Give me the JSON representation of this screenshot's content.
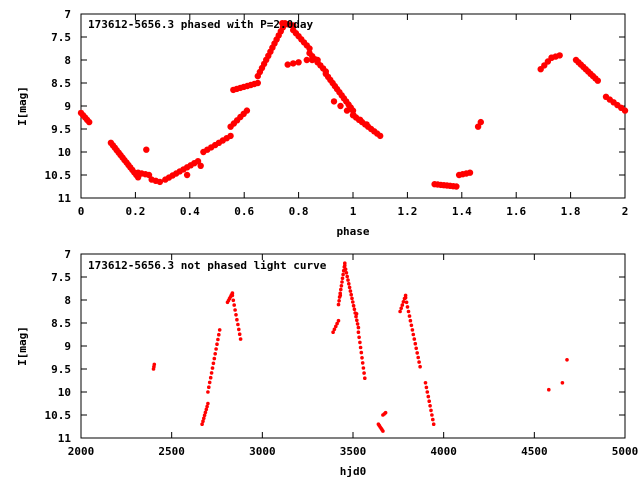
{
  "colors": {
    "marker": "#ff0000",
    "axis": "#000000",
    "background": "#ffffff"
  },
  "chart_data": [
    {
      "type": "scatter",
      "title": "173612-5656.3 phased with P=2.0day",
      "xlabel": "phase",
      "ylabel": "I[mag]",
      "xlim": [
        0,
        2
      ],
      "ylim": [
        7,
        11
      ],
      "y_inverted": true,
      "grid": false,
      "x_ticks": [
        0,
        0.2,
        0.4,
        0.6,
        0.8,
        1,
        1.2,
        1.4,
        1.6,
        1.8,
        2
      ],
      "x_tick_labels": [
        "0",
        "0.2",
        "0.4",
        "0.6",
        "0.8",
        "1",
        "1.2",
        "1.4",
        "1.6",
        "1.8",
        "2"
      ],
      "y_ticks": [
        7,
        7.5,
        8,
        8.5,
        9,
        9.5,
        10,
        10.5,
        11
      ],
      "y_tick_labels": [
        "7",
        "7.5",
        "8",
        "8.5",
        "9",
        "9.5",
        "10",
        "10.5",
        "11"
      ],
      "marker_size": "large",
      "series": [
        {
          "segments": [
            {
              "x0": 0.0,
              "x1": 0.03,
              "y0": 9.15,
              "y1": 9.35,
              "n": 5
            },
            {
              "x0": 0.11,
              "x1": 0.21,
              "y0": 9.8,
              "y1": 10.55,
              "n": 15
            },
            {
              "x0": 0.21,
              "x1": 0.25,
              "y0": 10.45,
              "y1": 10.5,
              "n": 4
            },
            {
              "x0": 0.26,
              "x1": 0.29,
              "y0": 10.6,
              "y1": 10.65,
              "n": 3
            },
            {
              "x0": 0.31,
              "x1": 0.43,
              "y0": 10.6,
              "y1": 10.2,
              "n": 10
            },
            {
              "x0": 0.45,
              "x1": 0.55,
              "y0": 10.0,
              "y1": 9.65,
              "n": 8
            },
            {
              "x0": 0.55,
              "x1": 0.61,
              "y0": 9.45,
              "y1": 9.1,
              "n": 6
            },
            {
              "x0": 0.56,
              "x1": 0.65,
              "y0": 8.65,
              "y1": 8.5,
              "n": 8
            },
            {
              "x0": 0.65,
              "x1": 0.75,
              "y0": 8.35,
              "y1": 7.2,
              "n": 14
            },
            {
              "x0": 0.74,
              "x1": 0.78,
              "y0": 7.2,
              "y1": 7.25,
              "n": 5
            },
            {
              "x0": 0.78,
              "x1": 0.84,
              "y0": 7.35,
              "y1": 7.75,
              "n": 7
            },
            {
              "x0": 0.84,
              "x1": 0.9,
              "y0": 7.85,
              "y1": 8.25,
              "n": 7
            },
            {
              "x0": 0.9,
              "x1": 1.0,
              "y0": 8.3,
              "y1": 9.1,
              "n": 13
            },
            {
              "x0": 1.0,
              "x1": 1.1,
              "y0": 9.2,
              "y1": 9.65,
              "n": 10
            },
            {
              "x0": 0.76,
              "x1": 0.8,
              "y0": 8.1,
              "y1": 8.05,
              "n": 3
            },
            {
              "x0": 0.83,
              "x1": 0.87,
              "y0": 8.0,
              "y1": 8.0,
              "n": 3
            },
            {
              "x0": 0.93,
              "x1": 1.05,
              "y0": 8.9,
              "y1": 9.4,
              "n": 6
            },
            {
              "x0": 1.3,
              "x1": 1.38,
              "y0": 10.7,
              "y1": 10.75,
              "n": 8
            },
            {
              "x0": 1.39,
              "x1": 1.43,
              "y0": 10.5,
              "y1": 10.45,
              "n": 4
            },
            {
              "x0": 1.46,
              "x1": 1.47,
              "y0": 9.45,
              "y1": 9.35,
              "n": 2
            },
            {
              "x0": 1.69,
              "x1": 1.73,
              "y0": 8.2,
              "y1": 7.95,
              "n": 4
            },
            {
              "x0": 1.73,
              "x1": 1.76,
              "y0": 7.95,
              "y1": 7.9,
              "n": 3
            },
            {
              "x0": 1.82,
              "x1": 1.9,
              "y0": 8.0,
              "y1": 8.45,
              "n": 10
            },
            {
              "x0": 1.93,
              "x1": 2.0,
              "y0": 8.8,
              "y1": 9.1,
              "n": 6
            }
          ],
          "points": [
            [
              0.24,
              9.95
            ],
            [
              0.44,
              10.3
            ],
            [
              0.39,
              10.5
            ]
          ]
        }
      ]
    },
    {
      "type": "scatter",
      "title": "173612-5656.3 not phased light curve",
      "xlabel": "hjd0",
      "ylabel": "I[mag]",
      "xlim": [
        2000,
        5000
      ],
      "ylim": [
        7,
        11
      ],
      "y_inverted": true,
      "grid": false,
      "x_ticks": [
        2000,
        2500,
        3000,
        3500,
        4000,
        4500,
        5000
      ],
      "x_tick_labels": [
        "2000",
        "2500",
        "3000",
        "3500",
        "4000",
        "4500",
        "5000"
      ],
      "y_ticks": [
        7,
        7.5,
        8,
        8.5,
        9,
        9.5,
        10,
        10.5,
        11
      ],
      "y_tick_labels": [
        "7",
        "7.5",
        "8",
        "8.5",
        "9",
        "9.5",
        "10",
        "10.5",
        "11"
      ],
      "marker_size": "small",
      "series": [
        {
          "segments": [
            {
              "x0": 2400,
              "x1": 2404,
              "y0": 9.5,
              "y1": 9.4,
              "n": 3
            },
            {
              "x0": 2668,
              "x1": 2700,
              "y0": 10.7,
              "y1": 10.25,
              "n": 8
            },
            {
              "x0": 2700,
              "x1": 2765,
              "y0": 10.0,
              "y1": 8.65,
              "n": 14
            },
            {
              "x0": 2808,
              "x1": 2835,
              "y0": 8.05,
              "y1": 7.85,
              "n": 6
            },
            {
              "x0": 2835,
              "x1": 2880,
              "y0": 7.9,
              "y1": 8.85,
              "n": 10
            },
            {
              "x0": 3390,
              "x1": 3420,
              "y0": 8.7,
              "y1": 8.45,
              "n": 5
            },
            {
              "x0": 3420,
              "x1": 3455,
              "y0": 8.1,
              "y1": 7.2,
              "n": 12
            },
            {
              "x0": 3455,
              "x1": 3530,
              "y0": 7.25,
              "y1": 8.6,
              "n": 18
            },
            {
              "x0": 3530,
              "x1": 3565,
              "y0": 8.7,
              "y1": 9.7,
              "n": 10
            },
            {
              "x0": 3640,
              "x1": 3665,
              "y0": 10.7,
              "y1": 10.85,
              "n": 6
            },
            {
              "x0": 3665,
              "x1": 3680,
              "y0": 10.5,
              "y1": 10.45,
              "n": 3
            },
            {
              "x0": 3760,
              "x1": 3790,
              "y0": 8.25,
              "y1": 7.9,
              "n": 6
            },
            {
              "x0": 3790,
              "x1": 3870,
              "y0": 7.95,
              "y1": 9.45,
              "n": 16
            },
            {
              "x0": 3900,
              "x1": 3945,
              "y0": 9.8,
              "y1": 10.7,
              "n": 10
            }
          ],
          "points": [
            [
              4580,
              9.95
            ],
            [
              4655,
              9.8
            ],
            [
              4680,
              9.3
            ],
            [
              3520,
              8.3
            ],
            [
              3430,
              7.9
            ]
          ]
        }
      ]
    }
  ]
}
